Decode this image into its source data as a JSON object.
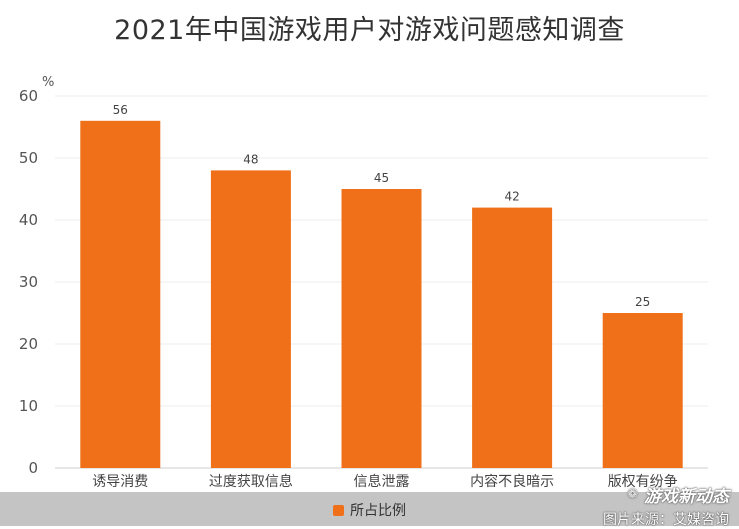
{
  "chart_data": {
    "type": "bar",
    "title": "2021年中国游戏用户对游戏问题感知调查",
    "ylabel": "%",
    "ylim": [
      0,
      60
    ],
    "yticks": [
      0,
      10,
      20,
      30,
      40,
      50,
      60
    ],
    "grid": true,
    "legend_position": "bottom",
    "categories": [
      "诱导消费",
      "过度获取信息",
      "信息泄露",
      "内容不良暗示",
      "版权有纷争"
    ],
    "series": [
      {
        "name": "所占比例",
        "values": [
          56,
          48,
          45,
          42,
          25
        ],
        "color": "#f07019"
      }
    ]
  },
  "watermark": {
    "icon": "wechat-icon",
    "account": "游戏新动态",
    "source": "图片来源：艾媒咨询"
  },
  "colors": {
    "bar": "#f07019",
    "grid": "#ececec",
    "footer": "#c4c4c4"
  }
}
